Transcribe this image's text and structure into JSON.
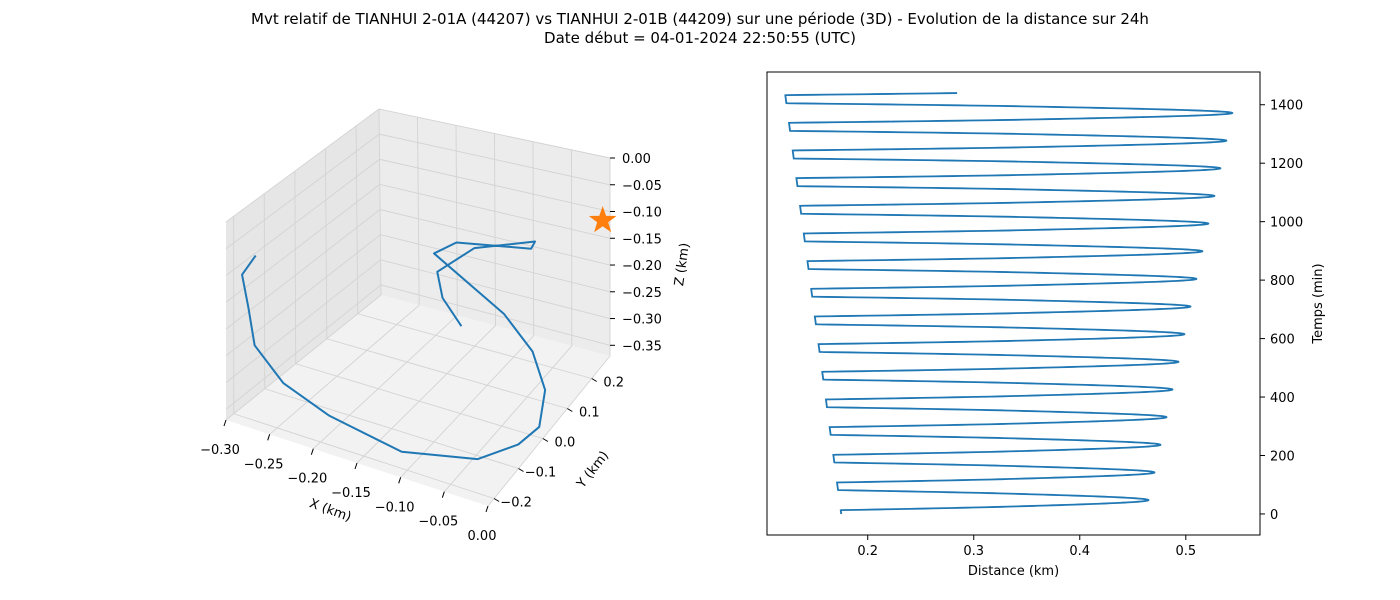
{
  "title_line1": "Mvt relatif de TIANHUI 2-01A (44207) vs TIANHUI 2-01B (44209) sur une période (3D) - Evolution de la distance sur 24h",
  "title_line2": "Date début = 04-01-2024 22:50:55 (UTC)",
  "colors": {
    "series": "#1f77b4",
    "marker": "#ff7f0e",
    "pane": "#f2f2f2",
    "grid": "#d3d3d3"
  },
  "chart_data": [
    {
      "type": "line3d",
      "xlabel": "X (km)",
      "ylabel": "Y (km)",
      "zlabel": "Z (km)",
      "x_ticks": [
        "−0.30",
        "−0.25",
        "−0.20",
        "−0.15",
        "−0.10",
        "−0.05",
        "0.00"
      ],
      "y_ticks": [
        "−0.2",
        "−0.1",
        "0.0",
        "0.1",
        "0.2"
      ],
      "z_ticks": [
        "0.00",
        "−0.05",
        "−0.10",
        "−0.15",
        "−0.20",
        "−0.25",
        "−0.30",
        "−0.35"
      ],
      "xlim": [
        -0.3,
        0.0
      ],
      "ylim": [
        -0.25,
        0.25
      ],
      "zlim": [
        -0.37,
        0.0
      ],
      "grid": true,
      "series": [
        {
          "points": [
            [
              -0.05,
              -0.18,
              -0.1
            ],
            [
              -0.08,
              -0.15,
              -0.08
            ],
            [
              -0.1,
              -0.1,
              -0.07
            ],
            [
              -0.08,
              -0.02,
              -0.06
            ],
            [
              -0.03,
              0.05,
              -0.06
            ],
            [
              -0.04,
              0.07,
              -0.09
            ],
            [
              -0.12,
              0.05,
              -0.11
            ],
            [
              -0.14,
              0.03,
              -0.13
            ],
            [
              -0.06,
              0.03,
              -0.2
            ],
            [
              -0.03,
              0.04,
              -0.26
            ],
            [
              -0.01,
              0.02,
              -0.31
            ],
            [
              0.0,
              -0.04,
              -0.34
            ],
            [
              -0.01,
              -0.09,
              -0.35
            ],
            [
              -0.04,
              -0.15,
              -0.36
            ],
            [
              -0.11,
              -0.21,
              -0.35
            ],
            [
              -0.19,
              -0.22,
              -0.32
            ],
            [
              -0.24,
              -0.23,
              -0.28
            ],
            [
              -0.27,
              -0.24,
              -0.22
            ],
            [
              -0.28,
              -0.23,
              -0.16
            ],
            [
              -0.29,
              -0.22,
              -0.11
            ],
            [
              -0.28,
              -0.2,
              -0.08
            ]
          ]
        }
      ],
      "marker": {
        "shape": "star",
        "point": [
          0.0,
          0.22,
          -0.1
        ]
      }
    },
    {
      "type": "line",
      "xlabel": "Distance (km)",
      "ylabel": "Temps (min)",
      "x_ticks": [
        "0.2",
        "0.3",
        "0.4",
        "0.5"
      ],
      "y_ticks": [
        "0",
        "200",
        "400",
        "600",
        "800",
        "1000",
        "1200",
        "1400"
      ],
      "xlim": [
        0.105,
        0.57
      ],
      "ylim": [
        -72,
        1512
      ],
      "grid": false,
      "period_min": 94.6,
      "duration_min": 1440,
      "envelope": {
        "t_min": [
          0,
          1440
        ],
        "max_distance": [
          0.462,
          0.548
        ],
        "min_distance": [
          0.175,
          0.122
        ],
        "notch_distance": [
          0.335,
          0.295
        ]
      }
    }
  ]
}
